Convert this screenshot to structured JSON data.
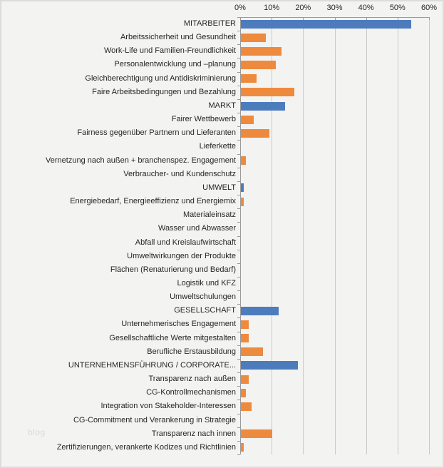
{
  "watermark": "blog",
  "colors": {
    "main_bar": "#4d7cbd",
    "sub_bar": "#ee8a3d",
    "gridline": "#c9c9c9",
    "axis": "#9b9b9b",
    "label_text": "#262626",
    "background": "#f3f3f1"
  },
  "chart_data": {
    "type": "bar",
    "orientation": "horizontal",
    "title": "",
    "xlabel": "",
    "ylabel": "",
    "unit": "%",
    "xlim": [
      0,
      60
    ],
    "x_ticks": [
      "0%",
      "10%",
      "20%",
      "30%",
      "40%",
      "50%",
      "60%"
    ],
    "grid": true,
    "legend": false,
    "categories": [
      "MITARBEITER",
      "Arbeitssicherheit und Gesundheit",
      "Work-Life und Familien-Freundlichkeit",
      "Personalentwicklung und –planung",
      "Gleichberechtigung und Antidiskriminierung",
      "Faire Arbeitsbedingungen und Bezahlung",
      "MARKT",
      "Fairer Wettbewerb",
      "Fairness gegenüber Partnern und Lieferanten",
      "Lieferkette",
      "Vernetzung nach außen + branchenspez. Engagement",
      "Verbraucher- und Kundenschutz",
      "UMWELT",
      "Energiebedarf, Energieeffizienz  und Energiemix",
      "Materialeinsatz",
      "Wasser und Abwasser",
      "Abfall und Kreislaufwirtschaft",
      "Umweltwirkungen der Produkte",
      "Flächen (Renaturierung und Bedarf)",
      "Logistik und KFZ",
      "Umweltschulungen",
      "GESELLSCHAFT",
      "Unternehmerisches Engagement",
      "Gesellschaftliche Werte mitgestalten",
      "Berufliche Erstausbildung",
      "UNTERNEHMENSFÜHRUNG / CORPORATE...",
      "Transparenz nach außen",
      "CG-Kontrollmechanismen",
      "Integration von Stakeholder-Interessen",
      "CG-Commitment und Verankerung in Strategie",
      "Transparenz nach innen",
      "Zertifizierungen, verankerte Kodizes und Richtlinien"
    ],
    "values": [
      54,
      8,
      13,
      11,
      5,
      17,
      14,
      4,
      9,
      0,
      1.5,
      0,
      1,
      1,
      0,
      0,
      0,
      0,
      0,
      0,
      0,
      12,
      2.5,
      2.5,
      7,
      18,
      2.5,
      1.5,
      3.5,
      0,
      10,
      1
    ],
    "levels": [
      "main",
      "sub",
      "sub",
      "sub",
      "sub",
      "sub",
      "main",
      "sub",
      "sub",
      "sub",
      "sub",
      "sub",
      "main",
      "sub",
      "sub",
      "sub",
      "sub",
      "sub",
      "sub",
      "sub",
      "sub",
      "main",
      "sub",
      "sub",
      "sub",
      "main",
      "sub",
      "sub",
      "sub",
      "sub",
      "sub",
      "sub"
    ]
  }
}
